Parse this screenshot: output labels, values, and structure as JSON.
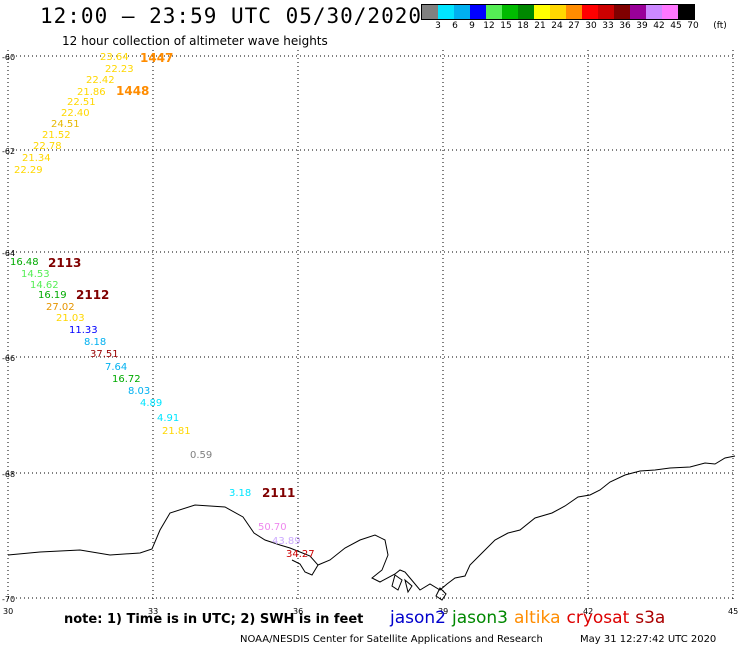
{
  "header": {
    "title": "12:00 – 23:59 UTC 05/30/2020",
    "subtitle": "12 hour collection of altimeter wave heights"
  },
  "color_scale": {
    "labels": [
      "3",
      "6",
      "9",
      "12",
      "15",
      "18",
      "21",
      "24",
      "27",
      "30",
      "33",
      "36",
      "39",
      "42",
      "45",
      "70"
    ],
    "unit": "(ft)",
    "colors": [
      "#808080",
      "#00e5ff",
      "#00b0f0",
      "#0000ff",
      "#55ee55",
      "#00bb00",
      "#008800",
      "#ffff00",
      "#ffd700",
      "#ff8c00",
      "#ff0000",
      "#cc0000",
      "#800000",
      "#990099",
      "#cc88ff",
      "#ff77ff",
      "#000000"
    ]
  },
  "map": {
    "lat_labels": [
      "-60",
      "-62",
      "-64",
      "-66",
      "-68",
      "-70"
    ],
    "lon_labels": [
      "30",
      "33",
      "36",
      "39",
      "42",
      "45"
    ]
  },
  "observations": [
    {
      "text": "23.64",
      "color": "#ffd700"
    },
    {
      "text": "22.23",
      "color": "#ffd700"
    },
    {
      "text": "22.42",
      "color": "#ffd700"
    },
    {
      "text": "21.86",
      "color": "#ffd700"
    },
    {
      "text": "22.51",
      "color": "#ffd700"
    },
    {
      "text": "22.40",
      "color": "#ffd700"
    },
    {
      "text": "24.51",
      "color": "#e6b800"
    },
    {
      "text": "21.52",
      "color": "#ffd700"
    },
    {
      "text": "22.78",
      "color": "#ffd700"
    },
    {
      "text": "21.34",
      "color": "#ffd700"
    },
    {
      "text": "22.29",
      "color": "#ffd700"
    },
    {
      "text": "16.48",
      "color": "#00aa00"
    },
    {
      "text": "14.53",
      "color": "#55ee55"
    },
    {
      "text": "14.62",
      "color": "#55ee55"
    },
    {
      "text": "16.19",
      "color": "#00aa00"
    },
    {
      "text": "27.02",
      "color": "#e69500"
    },
    {
      "text": "21.03",
      "color": "#ffd700"
    },
    {
      "text": "11.33",
      "color": "#0000ff"
    },
    {
      "text": "8.18",
      "color": "#00b0f0"
    },
    {
      "text": "37.51",
      "color": "#990000"
    },
    {
      "text": "7.64",
      "color": "#00b0f0"
    },
    {
      "text": "16.72",
      "color": "#00aa00"
    },
    {
      "text": "8.03",
      "color": "#00b0f0"
    },
    {
      "text": "4.89",
      "color": "#00e5ff"
    },
    {
      "text": "4.91",
      "color": "#00e5ff"
    },
    {
      "text": "21.81",
      "color": "#ffd700"
    },
    {
      "text": "0.59",
      "color": "#808080"
    },
    {
      "text": "3.18",
      "color": "#00e5ff"
    },
    {
      "text": "50.70",
      "color": "#ee88ee"
    },
    {
      "text": "43.89",
      "color": "#ccaaff"
    },
    {
      "text": "34.27",
      "color": "#cc0000"
    }
  ],
  "pass_times": [
    {
      "text": "1447",
      "color": "#ff8c00"
    },
    {
      "text": "1448",
      "color": "#ff8c00"
    },
    {
      "text": "2113",
      "color": "#800000"
    },
    {
      "text": "2112",
      "color": "#800000"
    },
    {
      "text": "2111",
      "color": "#800000"
    }
  ],
  "note": "note:  1) Time is in UTC;  2) SWH is in feet",
  "satellites": [
    {
      "name": "jason2",
      "color": "#0000cc"
    },
    {
      "name": "jason3",
      "color": "#008800"
    },
    {
      "name": "altika",
      "color": "#ff8c00"
    },
    {
      "name": "cryosat",
      "color": "#dd0000"
    },
    {
      "name": "s3a",
      "color": "#aa0000"
    }
  ],
  "footer": {
    "credit": "NOAA/NESDIS Center for Satellite Applications and Research",
    "timestamp": "May 31 12:27:42 UTC 2020"
  }
}
